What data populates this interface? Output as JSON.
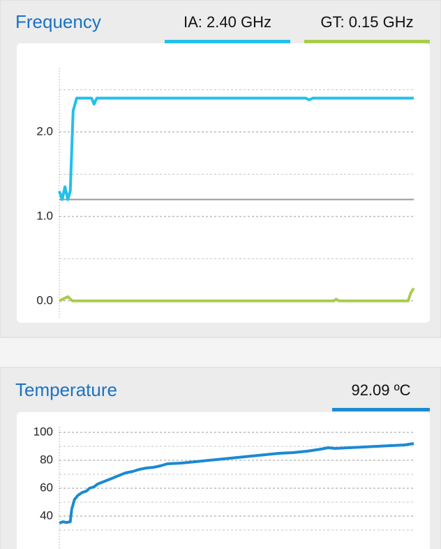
{
  "chart_data": [
    {
      "type": "line",
      "title": "Frequency",
      "ylim": [
        -0.2,
        2.76
      ],
      "xlim": [
        0,
        100
      ],
      "yticks": [
        {
          "value": 0,
          "label": "0.0"
        },
        {
          "value": 1,
          "label": "1.0"
        },
        {
          "value": 2,
          "label": "2.0"
        }
      ],
      "minor_yticks": [
        0.5,
        1.5,
        2.5
      ],
      "reference_line": {
        "value": 1.2,
        "color": "#999999"
      },
      "grid": true,
      "series": [
        {
          "name": "IA: 2.40 GHz",
          "color": "#22c0ea",
          "x": [
            0,
            0.8,
            1.6,
            2.4,
            3.1,
            3.9,
            4.9,
            9.1,
            9.8,
            10.6,
            69.5,
            70.5,
            71.5,
            100
          ],
          "values": [
            1.3,
            1.2,
            1.35,
            1.2,
            1.3,
            2.25,
            2.4,
            2.4,
            2.33,
            2.4,
            2.4,
            2.38,
            2.4,
            2.4
          ]
        },
        {
          "name": "GT: 0.15 GHz",
          "color": "#a9cc4b",
          "x": [
            0,
            2.4,
            3.7,
            77.4,
            78.1,
            78.9,
            98.4,
            99.2,
            100
          ],
          "values": [
            0,
            0.05,
            0,
            0,
            0.02,
            0,
            0,
            0.1,
            0.15
          ]
        }
      ]
    },
    {
      "type": "line",
      "title": "Temperature",
      "ylim": [
        16,
        104
      ],
      "xlim": [
        0,
        100
      ],
      "yticks": [
        40,
        60,
        80,
        100
      ],
      "minor_yticks": [
        30,
        50,
        70,
        90
      ],
      "grid": true,
      "series": [
        {
          "name": "92.09 ºC",
          "color": "#1b8ad3",
          "x": [
            0,
            1.0,
            2.0,
            3.1,
            3.5,
            4.3,
            5.3,
            6.5,
            7.7,
            8.5,
            9.8,
            10.8,
            12.8,
            14.8,
            16.7,
            18.7,
            20.7,
            22.6,
            24.6,
            26.6,
            28.5,
            30.5,
            34.4,
            38.4,
            42.3,
            46.3,
            50.2,
            54.1,
            58.1,
            62.0,
            65.9,
            69.9,
            73.8,
            75.8,
            77.8,
            81.7,
            85.6,
            89.6,
            93.5,
            97.4,
            100
          ],
          "values": [
            35,
            36,
            35.5,
            36,
            45,
            52,
            55,
            57,
            58,
            60,
            61,
            63,
            65,
            67,
            69,
            71,
            72,
            73.5,
            74.5,
            75,
            76,
            77.5,
            78,
            79,
            80,
            81,
            82,
            83,
            84,
            85,
            85.5,
            86.5,
            88,
            89,
            88.5,
            89,
            89.5,
            90,
            90.5,
            91,
            92
          ]
        }
      ]
    }
  ]
}
